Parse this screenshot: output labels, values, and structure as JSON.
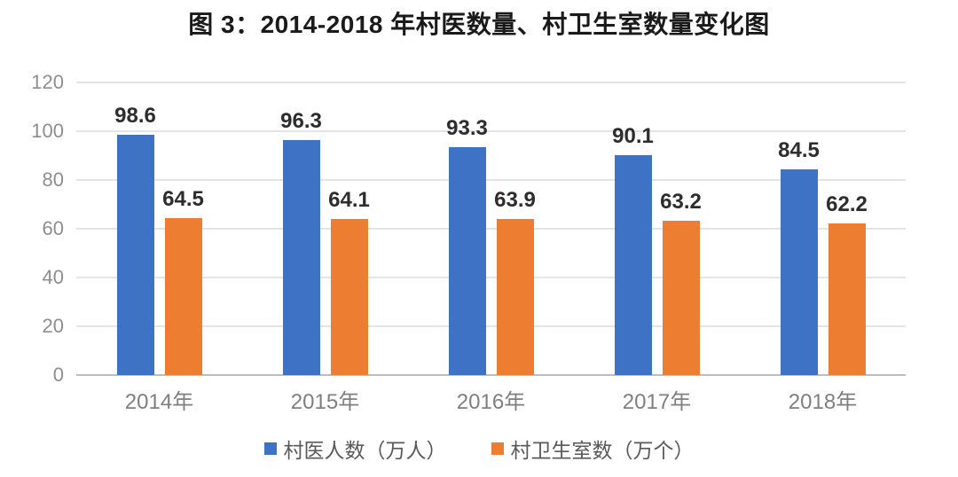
{
  "title": "图 3：2014-2018 年村医数量、村卫生室数量变化图",
  "colors": {
    "blue": "#3e72c4",
    "orange": "#ed7d31",
    "gridline": "#e4e4e4",
    "axis_line": "#bdbdbd",
    "tick_text": "#8e8e8e",
    "data_label_text": "#2d2d2d",
    "legend_text": "#595959"
  },
  "chart_data": {
    "type": "bar",
    "title": "图 3：2014-2018 年村医数量、村卫生室数量变化图",
    "categories": [
      "2014年",
      "2015年",
      "2016年",
      "2017年",
      "2018年"
    ],
    "series": [
      {
        "name": "村医人数（万人）",
        "color_key": "blue",
        "values": [
          98.6,
          96.3,
          93.3,
          90.1,
          84.5
        ]
      },
      {
        "name": "村卫生室数（万个）",
        "color_key": "orange",
        "values": [
          64.5,
          64.1,
          63.9,
          63.2,
          62.2
        ]
      }
    ],
    "data_labels_shown": true,
    "xlabel": "",
    "ylabel": "",
    "ylim": [
      0,
      120
    ],
    "yticks": [
      0,
      20,
      40,
      60,
      80,
      100,
      120
    ],
    "grid": true,
    "legend_position": "bottom"
  }
}
